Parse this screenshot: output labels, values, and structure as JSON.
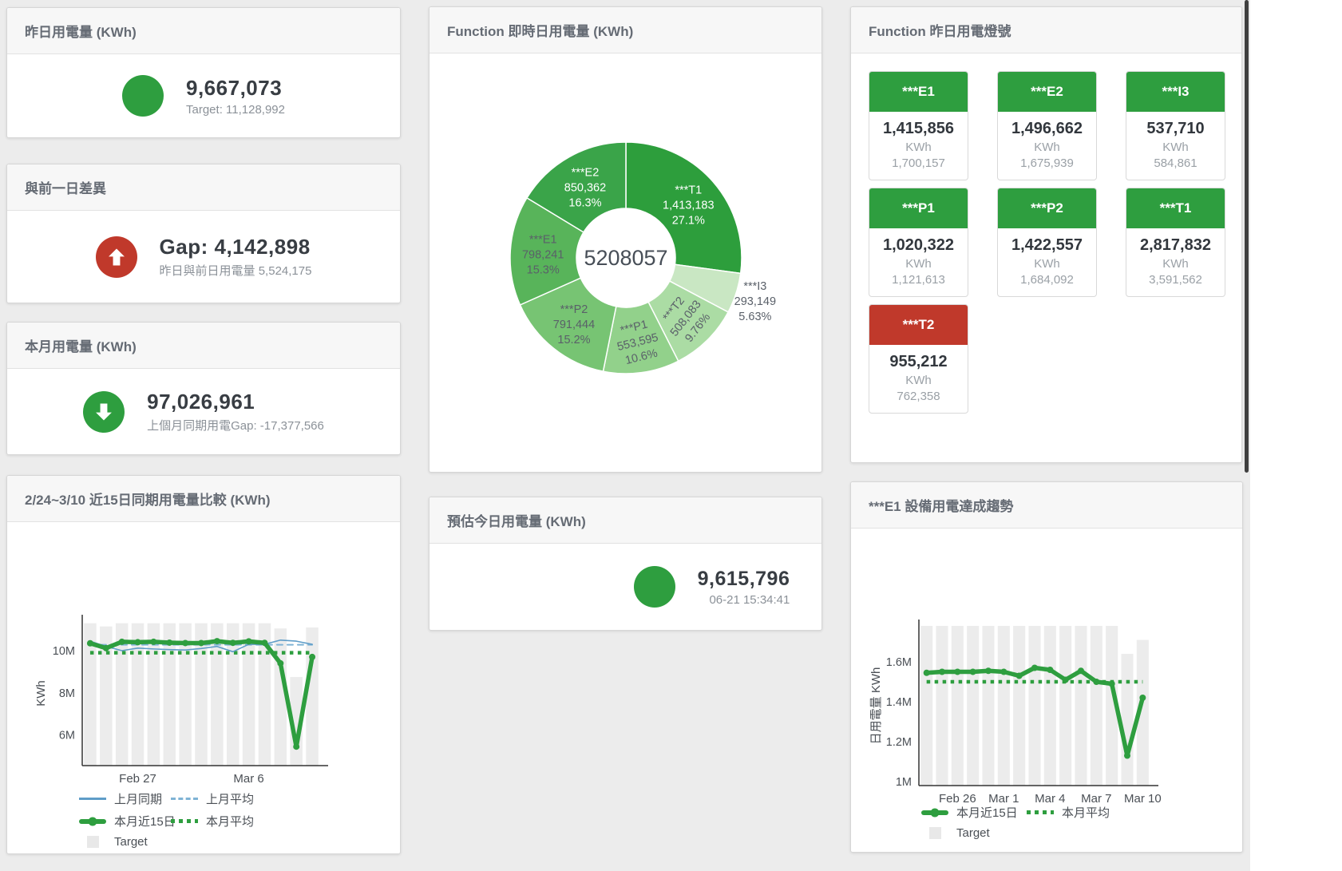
{
  "colors": {
    "green": "#2e9e3f",
    "red": "#c0392b",
    "blue_line": "#5f9dc8",
    "blue_dash": "#7fb3d5",
    "target_bar": "#ececec",
    "axis": "#333333",
    "dark_text": "#383d43",
    "muted_text": "#8b9198"
  },
  "panels": {
    "yesterday": {
      "title": "昨日用電量 (KWh)",
      "value": "9,667,073",
      "subtitle": "Target: 11,128,992",
      "indicator": "green-circle"
    },
    "day_gap": {
      "title": "與前一日差異",
      "value": "Gap: 4,142,898",
      "subtitle": "昨日與前日用電量 5,524,175",
      "indicator": "red-circle-up-arrow"
    },
    "month": {
      "title": "本月用電量 (KWh)",
      "value": "97,026,961",
      "subtitle": "上個月同期用電Gap: -17,377,566",
      "indicator": "green-circle-down-arrow"
    },
    "realtime": {
      "title": "Function 即時日用電量 (KWh)"
    },
    "lights": {
      "title": "Function 昨日用電燈號",
      "unit": "KWh",
      "tiles": [
        {
          "name": "***E1",
          "value": "1,415,856",
          "secondary": "1,700,157",
          "status": "green"
        },
        {
          "name": "***E2",
          "value": "1,496,662",
          "secondary": "1,675,939",
          "status": "green"
        },
        {
          "name": "***I3",
          "value": "537,710",
          "secondary": "584,861",
          "status": "green"
        },
        {
          "name": "***P1",
          "value": "1,020,322",
          "secondary": "1,121,613",
          "status": "green"
        },
        {
          "name": "***P2",
          "value": "1,422,557",
          "secondary": "1,684,092",
          "status": "green"
        },
        {
          "name": "***T1",
          "value": "2,817,832",
          "secondary": "3,591,562",
          "status": "green"
        },
        {
          "name": "***T2",
          "value": "955,212",
          "secondary": "762,358",
          "status": "red"
        }
      ]
    },
    "compare": {
      "title": "2/24~3/10 近15日同期用電量比較 (KWh)"
    },
    "estimate": {
      "title": "預估今日用電量 (KWh)",
      "value": "9,615,796",
      "subtitle": "06-21 15:34:41",
      "indicator": "green-circle"
    },
    "e1trend": {
      "title": "***E1 設備用電達成趨勢"
    }
  },
  "chart_data": [
    {
      "id": "realtime-donut",
      "type": "pie",
      "title": "Function 即時日用電量 (KWh)",
      "center_total": "5208057",
      "slices": [
        {
          "name": "***T1",
          "value": 1413183,
          "display": "1,413,183",
          "pct": "27.1%",
          "color": "#2d9e3c",
          "label_color": "#ffffff"
        },
        {
          "name": "***I3",
          "value": 293149,
          "display": "293,149",
          "pct": "5.63%",
          "color": "#c9e7c3",
          "label_color": "#5a6069",
          "label_r": 170
        },
        {
          "name": "***T2",
          "value": 508083,
          "display": "508,083",
          "pct": "9.76%",
          "color": "#abdca4",
          "label_color": "#5a6069",
          "rotate": -52
        },
        {
          "name": "***P1",
          "value": 553595,
          "display": "553,595",
          "pct": "10.6%",
          "color": "#92d18b",
          "label_color": "#5a6069",
          "rotate": -14
        },
        {
          "name": "***P2",
          "value": 791444,
          "display": "791,444",
          "pct": "15.2%",
          "color": "#77c473",
          "label_color": "#5a6069"
        },
        {
          "name": "***E1",
          "value": 798241,
          "display": "798,241",
          "pct": "15.3%",
          "color": "#58b45a",
          "label_color": "#5a6069"
        },
        {
          "name": "***E2",
          "value": 850362,
          "display": "850,362",
          "pct": "16.3%",
          "color": "#3aa449",
          "label_color": "#ffffff"
        }
      ]
    },
    {
      "id": "compare-trend",
      "type": "line",
      "title": "2/24~3/10 近15日同期用電量比較 (KWh)",
      "ylabel": "KWh",
      "ylim": [
        4.55,
        11.4
      ],
      "yticks": [
        {
          "v": 6,
          "label": "6M"
        },
        {
          "v": 8,
          "label": "8M"
        },
        {
          "v": 10,
          "label": "10M"
        }
      ],
      "xticks": [
        {
          "i": 3,
          "label": "Feb 27"
        },
        {
          "i": 10,
          "label": "Mar 6"
        }
      ],
      "target_bars": [
        11.3,
        11.15,
        11.3,
        11.3,
        11.3,
        11.3,
        11.3,
        11.3,
        11.3,
        11.3,
        11.3,
        11.3,
        11.05,
        8.75,
        11.1
      ],
      "series": [
        {
          "name": "上月同期",
          "style": "line",
          "color": "#5f9dc8",
          "width": 1.6,
          "values": [
            10.45,
            10.2,
            10.0,
            10.12,
            10.08,
            10.05,
            10.03,
            10.1,
            10.2,
            9.95,
            10.3,
            10.3,
            10.5,
            10.45,
            10.3
          ]
        },
        {
          "name": "上月平均",
          "style": "dash",
          "color": "#7fb3d5",
          "width": 2,
          "const": 10.28
        },
        {
          "name": "本月近15日",
          "style": "thick",
          "color": "#2e9e3f",
          "width": 5.5,
          "values": [
            10.35,
            10.12,
            10.42,
            10.4,
            10.42,
            10.38,
            10.36,
            10.36,
            10.45,
            10.37,
            10.44,
            10.37,
            9.4,
            5.45,
            9.7
          ]
        },
        {
          "name": "本月平均",
          "style": "dot",
          "color": "#2e9e3f",
          "width": 4.5,
          "const": 9.9
        }
      ],
      "legend_rows": [
        [
          "上月同期",
          "上月平均"
        ],
        [
          "本月近15日",
          "本月平均"
        ],
        [
          "Target"
        ]
      ],
      "units": "M KWh"
    },
    {
      "id": "e1-trend",
      "type": "line",
      "title": "***E1 設備用電達成趨勢",
      "ylabel": "日用電量 KWh",
      "ylim": [
        0.98,
        1.78
      ],
      "yticks": [
        {
          "v": 1,
          "label": "1M"
        },
        {
          "v": 1.2,
          "label": "1.2M"
        },
        {
          "v": 1.4,
          "label": "1.4M"
        },
        {
          "v": 1.6,
          "label": "1.6M"
        }
      ],
      "xticks": [
        {
          "i": 2,
          "label": "Feb 26"
        },
        {
          "i": 5,
          "label": "Mar 1"
        },
        {
          "i": 8,
          "label": "Mar 4"
        },
        {
          "i": 11,
          "label": "Mar 7"
        },
        {
          "i": 14,
          "label": "Mar 10"
        }
      ],
      "target_bars": [
        1.78,
        1.78,
        1.78,
        1.78,
        1.78,
        1.78,
        1.78,
        1.78,
        1.78,
        1.78,
        1.78,
        1.78,
        1.78,
        1.64,
        1.71
      ],
      "series": [
        {
          "name": "本月近15日",
          "style": "thick",
          "color": "#2e9e3f",
          "width": 5.5,
          "values": [
            1.545,
            1.55,
            1.55,
            1.55,
            1.555,
            1.55,
            1.53,
            1.57,
            1.56,
            1.51,
            1.555,
            1.5,
            1.49,
            1.13,
            1.42
          ]
        },
        {
          "name": "本月平均",
          "style": "dot",
          "color": "#2e9e3f",
          "width": 4.5,
          "const": 1.5
        }
      ],
      "legend_rows": [
        [
          "本月近15日",
          "本月平均"
        ],
        [
          "Target"
        ]
      ],
      "units": "M KWh"
    }
  ]
}
